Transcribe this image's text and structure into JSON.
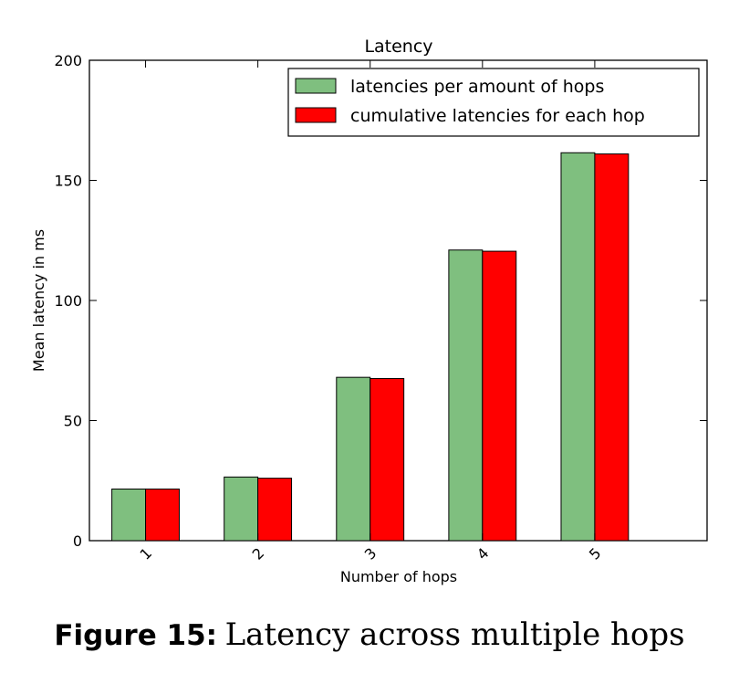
{
  "chart_data": {
    "type": "bar",
    "title": "Latency",
    "xlabel": "Number of hops",
    "ylabel": "Mean latency in ms",
    "categories": [
      "1",
      "2",
      "3",
      "4",
      "5"
    ],
    "x_range": [
      0.5,
      6.0
    ],
    "ylim": [
      0,
      200
    ],
    "yticks": [
      0,
      50,
      100,
      150,
      200
    ],
    "grid": false,
    "legend_position": "top-right",
    "series": [
      {
        "name": "latencies per amount of hops",
        "color": "#7fbf7f",
        "values": [
          21.5,
          26.5,
          68.0,
          121.0,
          161.5
        ]
      },
      {
        "name": "cumulative latencies for each hop",
        "color": "#ff0000",
        "values": [
          21.5,
          26.0,
          67.5,
          120.5,
          161.0
        ]
      }
    ]
  },
  "caption": {
    "label": "Figure 15:",
    "text": "Latency across multiple hops"
  }
}
